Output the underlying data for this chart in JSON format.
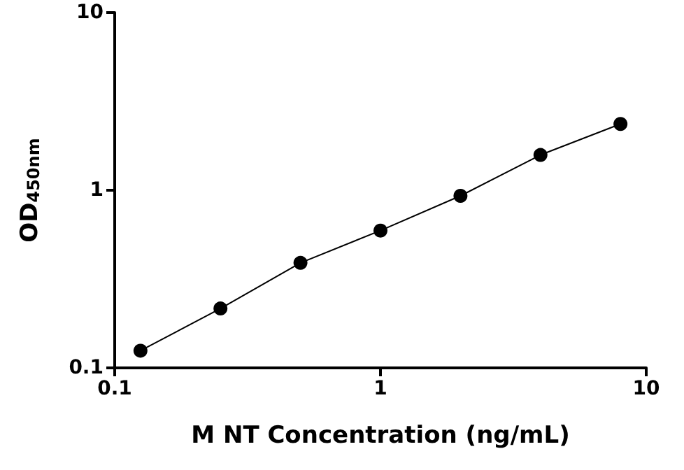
{
  "chart_data": {
    "type": "scatter",
    "xlabel": "M NT Concentration (ng/mL)",
    "ylabel": "OD$_{450nm}$",
    "log": "xy",
    "xlim": [
      0.1,
      10
    ],
    "xticks": [
      0.1,
      1,
      10
    ],
    "ylim": [
      0.1,
      10
    ],
    "yticks": [
      0.1,
      1,
      10
    ],
    "grid": false,
    "series": [
      {
        "type": "line",
        "color": "#000000",
        "marker": "none",
        "line_style": "solid",
        "x": [
          0.125,
          0.25,
          0.5,
          1,
          2,
          4,
          8
        ],
        "values": [
          0.125,
          0.216,
          0.39,
          0.593,
          0.93,
          1.58,
          2.36
        ]
      },
      {
        "color": "#000000",
        "marker": "circle",
        "x": [
          0.125,
          0.25,
          0.5,
          1,
          2,
          4,
          8
        ],
        "values": [
          0.125,
          0.216,
          0.39,
          0.593,
          0.93,
          1.58,
          2.36
        ]
      }
    ]
  }
}
